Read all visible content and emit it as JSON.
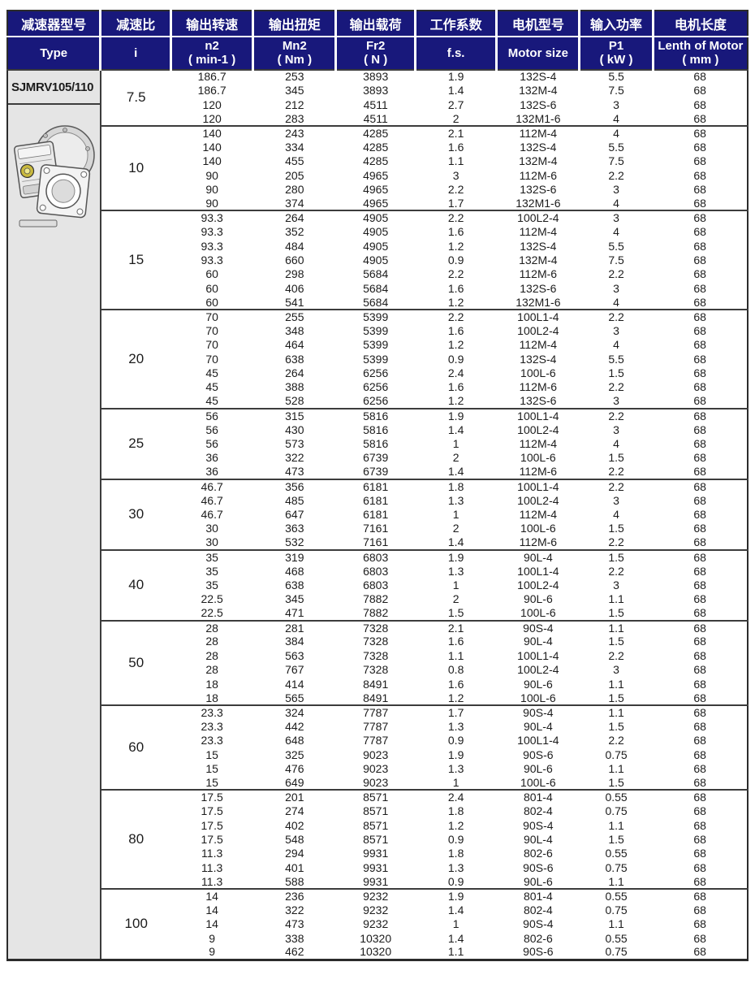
{
  "colors": {
    "header_bg": "#18187b",
    "header_text": "#ffffff",
    "body_text": "#1c1c1c",
    "type_column_bg": "#e5e5e5",
    "separator": "#3c3c3c",
    "gear_hub_accent": "#c9b93e"
  },
  "table": {
    "model": "SJMRV105/110",
    "headers_cn": [
      "减速器型号",
      "减速比",
      "输出转速",
      "输出扭矩",
      "输出载荷",
      "工作系数",
      "电机型号",
      "输入功率",
      "电机长度"
    ],
    "headers_en": [
      {
        "line1": "Type",
        "line2": ""
      },
      {
        "line1": "i",
        "line2": ""
      },
      {
        "line1": "n2",
        "line2": "( min-1 )"
      },
      {
        "line1": "Mn2",
        "line2": "( Nm )"
      },
      {
        "line1": "Fr2",
        "line2": "( N )"
      },
      {
        "line1": "f.s.",
        "line2": ""
      },
      {
        "line1": "Motor size",
        "line2": ""
      },
      {
        "line1": "P1",
        "line2": "( kW )"
      },
      {
        "line1": "Lenth of Motor",
        "line2": "( mm )"
      }
    ],
    "col_keys": [
      "n2",
      "mn2",
      "fr2",
      "fs",
      "motor-size",
      "p1",
      "motor-length"
    ],
    "groups": [
      {
        "i": "7.5",
        "rows": [
          [
            "186.7",
            "253",
            "3893",
            "1.9",
            "132S-4",
            "5.5",
            "68"
          ],
          [
            "186.7",
            "345",
            "3893",
            "1.4",
            "132M-4",
            "7.5",
            "68"
          ],
          [
            "120",
            "212",
            "4511",
            "2.7",
            "132S-6",
            "3",
            "68"
          ],
          [
            "120",
            "283",
            "4511",
            "2",
            "132M1-6",
            "4",
            "68"
          ]
        ]
      },
      {
        "i": "10",
        "rows": [
          [
            "140",
            "243",
            "4285",
            "2.1",
            "112M-4",
            "4",
            "68"
          ],
          [
            "140",
            "334",
            "4285",
            "1.6",
            "132S-4",
            "5.5",
            "68"
          ],
          [
            "140",
            "455",
            "4285",
            "1.1",
            "132M-4",
            "7.5",
            "68"
          ],
          [
            "90",
            "205",
            "4965",
            "3",
            "112M-6",
            "2.2",
            "68"
          ],
          [
            "90",
            "280",
            "4965",
            "2.2",
            "132S-6",
            "3",
            "68"
          ],
          [
            "90",
            "374",
            "4965",
            "1.7",
            "132M1-6",
            "4",
            "68"
          ]
        ]
      },
      {
        "i": "15",
        "rows": [
          [
            "93.3",
            "264",
            "4905",
            "2.2",
            "100L2-4",
            "3",
            "68"
          ],
          [
            "93.3",
            "352",
            "4905",
            "1.6",
            "112M-4",
            "4",
            "68"
          ],
          [
            "93.3",
            "484",
            "4905",
            "1.2",
            "132S-4",
            "5.5",
            "68"
          ],
          [
            "93.3",
            "660",
            "4905",
            "0.9",
            "132M-4",
            "7.5",
            "68"
          ],
          [
            "60",
            "298",
            "5684",
            "2.2",
            "112M-6",
            "2.2",
            "68"
          ],
          [
            "60",
            "406",
            "5684",
            "1.6",
            "132S-6",
            "3",
            "68"
          ],
          [
            "60",
            "541",
            "5684",
            "1.2",
            "132M1-6",
            "4",
            "68"
          ]
        ]
      },
      {
        "i": "20",
        "rows": [
          [
            "70",
            "255",
            "5399",
            "2.2",
            "100L1-4",
            "2.2",
            "68"
          ],
          [
            "70",
            "348",
            "5399",
            "1.6",
            "100L2-4",
            "3",
            "68"
          ],
          [
            "70",
            "464",
            "5399",
            "1.2",
            "112M-4",
            "4",
            "68"
          ],
          [
            "70",
            "638",
            "5399",
            "0.9",
            "132S-4",
            "5.5",
            "68"
          ],
          [
            "45",
            "264",
            "6256",
            "2.4",
            "100L-6",
            "1.5",
            "68"
          ],
          [
            "45",
            "388",
            "6256",
            "1.6",
            "112M-6",
            "2.2",
            "68"
          ],
          [
            "45",
            "528",
            "6256",
            "1.2",
            "132S-6",
            "3",
            "68"
          ]
        ]
      },
      {
        "i": "25",
        "rows": [
          [
            "56",
            "315",
            "5816",
            "1.9",
            "100L1-4",
            "2.2",
            "68"
          ],
          [
            "56",
            "430",
            "5816",
            "1.4",
            "100L2-4",
            "3",
            "68"
          ],
          [
            "56",
            "573",
            "5816",
            "1",
            "112M-4",
            "4",
            "68"
          ],
          [
            "36",
            "322",
            "6739",
            "2",
            "100L-6",
            "1.5",
            "68"
          ],
          [
            "36",
            "473",
            "6739",
            "1.4",
            "112M-6",
            "2.2",
            "68"
          ]
        ]
      },
      {
        "i": "30",
        "rows": [
          [
            "46.7",
            "356",
            "6181",
            "1.8",
            "100L1-4",
            "2.2",
            "68"
          ],
          [
            "46.7",
            "485",
            "6181",
            "1.3",
            "100L2-4",
            "3",
            "68"
          ],
          [
            "46.7",
            "647",
            "6181",
            "1",
            "112M-4",
            "4",
            "68"
          ],
          [
            "30",
            "363",
            "7161",
            "2",
            "100L-6",
            "1.5",
            "68"
          ],
          [
            "30",
            "532",
            "7161",
            "1.4",
            "112M-6",
            "2.2",
            "68"
          ]
        ]
      },
      {
        "i": "40",
        "rows": [
          [
            "35",
            "319",
            "6803",
            "1.9",
            "90L-4",
            "1.5",
            "68"
          ],
          [
            "35",
            "468",
            "6803",
            "1.3",
            "100L1-4",
            "2.2",
            "68"
          ],
          [
            "35",
            "638",
            "6803",
            "1",
            "100L2-4",
            "3",
            "68"
          ],
          [
            "22.5",
            "345",
            "7882",
            "2",
            "90L-6",
            "1.1",
            "68"
          ],
          [
            "22.5",
            "471",
            "7882",
            "1.5",
            "100L-6",
            "1.5",
            "68"
          ]
        ]
      },
      {
        "i": "50",
        "rows": [
          [
            "28",
            "281",
            "7328",
            "2.1",
            "90S-4",
            "1.1",
            "68"
          ],
          [
            "28",
            "384",
            "7328",
            "1.6",
            "90L-4",
            "1.5",
            "68"
          ],
          [
            "28",
            "563",
            "7328",
            "1.1",
            "100L1-4",
            "2.2",
            "68"
          ],
          [
            "28",
            "767",
            "7328",
            "0.8",
            "100L2-4",
            "3",
            "68"
          ],
          [
            "18",
            "414",
            "8491",
            "1.6",
            "90L-6",
            "1.1",
            "68"
          ],
          [
            "18",
            "565",
            "8491",
            "1.2",
            "100L-6",
            "1.5",
            "68"
          ]
        ]
      },
      {
        "i": "60",
        "rows": [
          [
            "23.3",
            "324",
            "7787",
            "1.7",
            "90S-4",
            "1.1",
            "68"
          ],
          [
            "23.3",
            "442",
            "7787",
            "1.3",
            "90L-4",
            "1.5",
            "68"
          ],
          [
            "23.3",
            "648",
            "7787",
            "0.9",
            "100L1-4",
            "2.2",
            "68"
          ],
          [
            "15",
            "325",
            "9023",
            "1.9",
            "90S-6",
            "0.75",
            "68"
          ],
          [
            "15",
            "476",
            "9023",
            "1.3",
            "90L-6",
            "1.1",
            "68"
          ],
          [
            "15",
            "649",
            "9023",
            "1",
            "100L-6",
            "1.5",
            "68"
          ]
        ]
      },
      {
        "i": "80",
        "rows": [
          [
            "17.5",
            "201",
            "8571",
            "2.4",
            "801-4",
            "0.55",
            "68"
          ],
          [
            "17.5",
            "274",
            "8571",
            "1.8",
            "802-4",
            "0.75",
            "68"
          ],
          [
            "17.5",
            "402",
            "8571",
            "1.2",
            "90S-4",
            "1.1",
            "68"
          ],
          [
            "17.5",
            "548",
            "8571",
            "0.9",
            "90L-4",
            "1.5",
            "68"
          ],
          [
            "11.3",
            "294",
            "9931",
            "1.8",
            "802-6",
            "0.55",
            "68"
          ],
          [
            "11.3",
            "401",
            "9931",
            "1.3",
            "90S-6",
            "0.75",
            "68"
          ],
          [
            "11.3",
            "588",
            "9931",
            "0.9",
            "90L-6",
            "1.1",
            "68"
          ]
        ]
      },
      {
        "i": "100",
        "rows": [
          [
            "14",
            "236",
            "9232",
            "1.9",
            "801-4",
            "0.55",
            "68"
          ],
          [
            "14",
            "322",
            "9232",
            "1.4",
            "802-4",
            "0.75",
            "68"
          ],
          [
            "14",
            "473",
            "9232",
            "1",
            "90S-4",
            "1.1",
            "68"
          ],
          [
            "9",
            "338",
            "10320",
            "1.4",
            "802-6",
            "0.55",
            "68"
          ],
          [
            "9",
            "462",
            "10320",
            "1.1",
            "90S-6",
            "0.75",
            "68"
          ]
        ]
      }
    ]
  }
}
